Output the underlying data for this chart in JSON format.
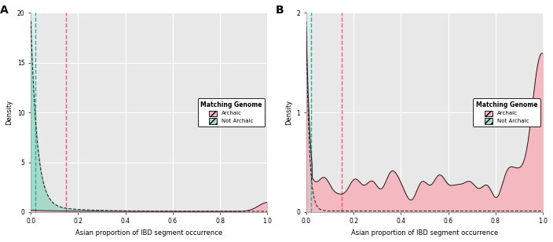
{
  "panel_A": {
    "label": "A",
    "ylim": [
      0,
      20
    ],
    "yticks": [
      0,
      5,
      10,
      15,
      20
    ],
    "ylabel": "Density",
    "xlabel": "Asian proportion of IBD segment occurrence",
    "vline_cyan": 0.02,
    "vline_red": 0.15,
    "archaic_color": "#F4B8C1",
    "not_archaic_color": "#A8D8C8",
    "line_color": "#1a1a1a",
    "legend_title": "Matching Genome",
    "legend_archaic": "Archaic",
    "legend_not_archaic": "Not Archaic"
  },
  "panel_B": {
    "label": "B",
    "ylim": [
      0,
      2
    ],
    "yticks": [
      0,
      1,
      2
    ],
    "ylabel": "Density",
    "xlabel": "Asian proportion of IBD segment occurrence",
    "vline_cyan": 0.02,
    "vline_red": 0.15,
    "archaic_color": "#F4B8C1",
    "not_archaic_color": "#A8D8C8",
    "line_color": "#1a1a1a",
    "legend_title": "Matching Genome",
    "legend_archaic": "Archaic",
    "legend_not_archaic": "Not Archaic"
  },
  "bg_color": "#E8E8E8",
  "grid_color": "#FFFFFF",
  "xticks": [
    0.0,
    0.2,
    0.4,
    0.6,
    0.8,
    1.0
  ]
}
